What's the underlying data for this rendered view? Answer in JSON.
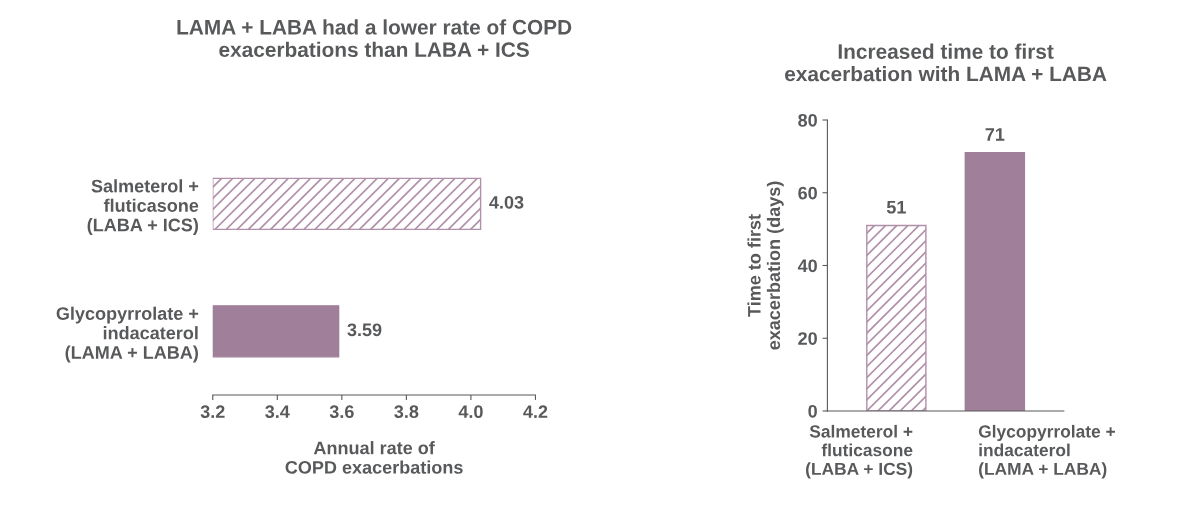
{
  "chart_data": [
    {
      "type": "bar",
      "orientation": "horizontal",
      "title": "LAMA + LABA had a lower rate of COPD\nexacerbations than LABA + ICS",
      "categories": [
        "Salmeterol +\nfluticasone\n(LABA + ICS)",
        "Glycopyrrolate +\nindacaterol\n(LAMA + LABA)"
      ],
      "values": [
        4.03,
        3.59
      ],
      "colors": [
        "#b08fa9",
        "#a07f9a"
      ],
      "xlim": [
        3.2,
        4.2
      ],
      "xticks": [
        3.2,
        3.4,
        3.6,
        3.8,
        {
          "value": 4.0,
          "label": "4.0"
        },
        4.2
      ],
      "xlabel": "Annual rate of\nCOPD exacerbations",
      "data_labels": true,
      "grid": false,
      "legend": false
    },
    {
      "type": "bar",
      "title": "Increased time to first\nexacerbation with LAMA + LABA",
      "categories": [
        "Salmeterol +\nfluticasone\n(LABA + ICS)",
        "Glycopyrrolate +\nindacaterol\n(LAMA + LABA)"
      ],
      "values": [
        51,
        71
      ],
      "colors": [
        "#b08fa9",
        "#a07f9a"
      ],
      "ylim": [
        0,
        80
      ],
      "yticks": [
        0,
        20,
        40,
        60,
        80
      ],
      "ylabel": "Time to first\nexacerbation (days)",
      "data_labels": true,
      "grid": false,
      "legend": false
    }
  ]
}
